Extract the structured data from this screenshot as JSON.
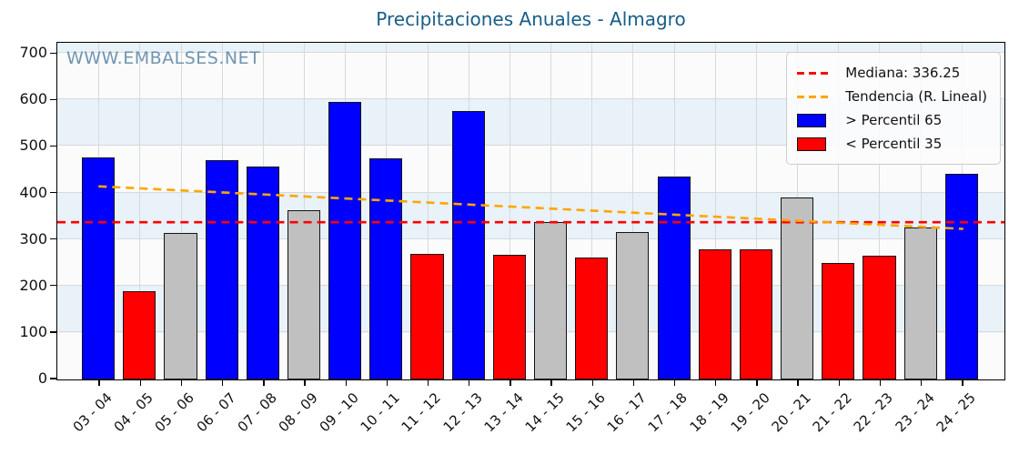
{
  "title": "Precipitaciones Anuales - Almagro",
  "watermark": "WWW.EMBALSES.NET",
  "legend": {
    "median_label": "Mediana: 336.25",
    "trend_label": "Tendencia (R. Lineal)",
    "high_label": "> Percentil 65",
    "low_label": "< Percentil 35"
  },
  "colors": {
    "high": "#0000ff",
    "low": "#ff0000",
    "mid": "#c0c0c0",
    "median_line": "#ff0000",
    "trend_line": "#ffa500",
    "title": "#175d87",
    "watermark": "rgba(77,124,160,0.8)",
    "band_white": "#fbfbfb",
    "band_blue": "#e9f2f8",
    "grid": "#d5dadd"
  },
  "chart_data": {
    "type": "bar",
    "title": "Precipitaciones Anuales - Almagro",
    "categories": [
      "03 - 04",
      "04 - 05",
      "05 - 06",
      "06 - 07",
      "07 - 08",
      "08 - 09",
      "09 - 10",
      "10 - 11",
      "11 - 12",
      "12 - 13",
      "13 - 14",
      "14 - 15",
      "15 - 16",
      "16 - 17",
      "17 - 18",
      "18 - 19",
      "19 - 20",
      "20 - 21",
      "21 - 22",
      "22 - 23",
      "23 - 24",
      "24 - 25"
    ],
    "values": [
      478,
      190,
      316,
      472,
      457,
      363,
      596,
      476,
      270,
      577,
      268,
      338,
      262,
      317,
      436,
      280,
      280,
      391,
      250,
      267,
      326,
      442
    ],
    "bar_classes": [
      "high",
      "low",
      "mid",
      "high",
      "high",
      "mid",
      "high",
      "high",
      "low",
      "high",
      "low",
      "mid",
      "low",
      "mid",
      "high",
      "low",
      "low",
      "mid",
      "low",
      "low",
      "mid",
      "high"
    ],
    "median": 336.25,
    "trend": {
      "start_value": 413,
      "end_value": 322
    },
    "ylim": [
      0,
      720
    ],
    "yticks": [
      0,
      100,
      200,
      300,
      400,
      500,
      600,
      700
    ],
    "band_step": 100,
    "grid": true,
    "legend_position": "top-right",
    "xlabel": "",
    "ylabel": ""
  }
}
